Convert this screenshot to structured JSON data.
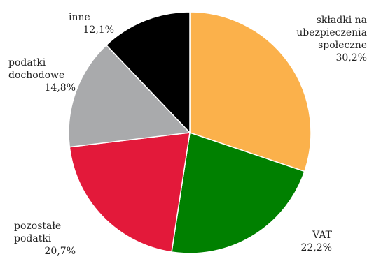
{
  "chart_data": {
    "type": "pie",
    "start": "top",
    "direction": "clockwise",
    "slices": [
      {
        "label_lines": [
          "składki na",
          "ubezpieczenia",
          "społeczne"
        ],
        "value_label": "30,2%",
        "value": 30.2,
        "color": "#fbb14b"
      },
      {
        "label_lines": [
          "VAT"
        ],
        "value_label": "22,2%",
        "value": 22.2,
        "color": "#008000"
      },
      {
        "label_lines": [
          "pozostałe",
          "podatki"
        ],
        "value_label": "20,7%",
        "value": 20.7,
        "color": "#e3193a"
      },
      {
        "label_lines": [
          "podatki",
          "dochodowe"
        ],
        "value_label": "14,8%",
        "value": 14.8,
        "color": "#a9aaac"
      },
      {
        "label_lines": [
          "inne"
        ],
        "value_label": "12,1%",
        "value": 12.1,
        "color": "#000000"
      }
    ]
  }
}
